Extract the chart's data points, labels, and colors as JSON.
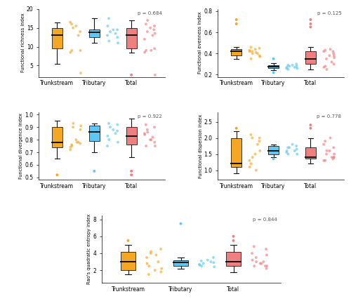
{
  "panels": [
    {
      "ylabel": "Functional richness index",
      "p_value": "p = 0.684",
      "ylim": [
        2,
        20
      ],
      "yticks": [
        5,
        10,
        15,
        20
      ],
      "groups": {
        "Trunkstream": {
          "color": "#F5A623",
          "scatter": [
            9.0,
            13.0,
            15.0,
            15.5,
            16.5,
            9.0,
            14.0,
            8.5,
            3.0,
            16.0
          ],
          "q1": 9.5,
          "median": 13.0,
          "q3": 15.0,
          "whislo": 5.5,
          "whishi": 16.5,
          "outliers": []
        },
        "Tributary": {
          "color": "#5BC8F5",
          "scatter": [
            11.5,
            13.5,
            14.0,
            14.5,
            13.0,
            12.5,
            14.5,
            15.5,
            11.0,
            17.5
          ],
          "q1": 12.5,
          "median": 13.75,
          "q3": 14.5,
          "whislo": 11.0,
          "whishi": 17.5,
          "outliers": []
        },
        "Total": {
          "color": "#F08080",
          "scatter": [
            9.0,
            13.0,
            14.0,
            15.0,
            12.0,
            9.5,
            15.5,
            8.5,
            2.5,
            16.0,
            17.0,
            9.0,
            13.5,
            14.5
          ],
          "q1": 9.5,
          "median": 13.0,
          "q3": 15.0,
          "whislo": 8.5,
          "whishi": 17.0,
          "outliers": [
            2.5
          ]
        }
      }
    },
    {
      "ylabel": "Functional evenness index",
      "p_value": "p = 0.125",
      "ylim": [
        0.18,
        0.82
      ],
      "yticks": [
        0.2,
        0.4,
        0.6,
        0.8
      ],
      "groups": {
        "Trunkstream": {
          "color": "#F5A623",
          "scatter": [
            0.35,
            0.4,
            0.42,
            0.44,
            0.43,
            0.38,
            0.45,
            0.42,
            0.37,
            0.46,
            0.4,
            0.41
          ],
          "q1": 0.38,
          "median": 0.42,
          "q3": 0.44,
          "whislo": 0.35,
          "whishi": 0.46,
          "outliers": [
            0.68,
            0.72
          ]
        },
        "Tributary": {
          "color": "#5BC8F5",
          "scatter": [
            0.25,
            0.27,
            0.28,
            0.29,
            0.26,
            0.28,
            0.3,
            0.27,
            0.26,
            0.29
          ],
          "q1": 0.26,
          "median": 0.275,
          "q3": 0.29,
          "whislo": 0.24,
          "whishi": 0.31,
          "outliers": [
            0.22,
            0.35
          ]
        },
        "Total": {
          "color": "#F08080",
          "scatter": [
            0.28,
            0.32,
            0.35,
            0.38,
            0.42,
            0.3,
            0.4,
            0.27,
            0.36,
            0.43,
            0.25,
            0.44,
            0.38,
            0.42
          ],
          "q1": 0.3,
          "median": 0.35,
          "q3": 0.42,
          "whislo": 0.25,
          "whishi": 0.46,
          "outliers": [
            0.65,
            0.68,
            0.72
          ]
        }
      }
    },
    {
      "ylabel": "Functional divergence index",
      "p_value": "p = 0.922",
      "ylim": [
        0.48,
        1.02
      ],
      "yticks": [
        0.5,
        0.6,
        0.7,
        0.8,
        0.9,
        1.0
      ],
      "groups": {
        "Trunkstream": {
          "color": "#F5A623",
          "scatter": [
            0.75,
            0.78,
            0.9,
            0.8,
            0.72,
            0.88,
            0.77,
            0.74,
            0.91,
            0.76,
            0.93,
            0.78
          ],
          "q1": 0.74,
          "median": 0.78,
          "q3": 0.9,
          "whislo": 0.65,
          "whishi": 0.95,
          "outliers": [
            0.52
          ]
        },
        "Tributary": {
          "color": "#5BC8F5",
          "scatter": [
            0.8,
            0.85,
            0.9,
            0.88,
            0.75,
            0.92,
            0.87,
            0.83,
            0.78,
            0.93
          ],
          "q1": 0.79,
          "median": 0.86,
          "q3": 0.91,
          "whislo": 0.7,
          "whishi": 0.93,
          "outliers": [
            0.55
          ]
        },
        "Total": {
          "color": "#F08080",
          "scatter": [
            0.75,
            0.82,
            0.88,
            0.8,
            0.85,
            0.78,
            0.9,
            0.84,
            0.75,
            0.92,
            0.86,
            0.8
          ],
          "q1": 0.76,
          "median": 0.83,
          "q3": 0.9,
          "whislo": 0.66,
          "whishi": 0.97,
          "outliers": [
            0.52,
            0.55
          ]
        }
      }
    },
    {
      "ylabel": "Functional dispersion index",
      "p_value": "p = 0.778",
      "ylim": [
        0.7,
        2.8
      ],
      "yticks": [
        1.0,
        1.5,
        2.0,
        2.5
      ],
      "groups": {
        "Trunkstream": {
          "color": "#F5A623",
          "scatter": [
            1.2,
            1.8,
            2.0,
            1.5,
            1.3,
            2.0,
            1.9,
            1.1,
            1.6,
            2.1,
            1.4,
            1.0
          ],
          "q1": 1.1,
          "median": 1.2,
          "q3": 2.0,
          "whislo": 0.9,
          "whishi": 2.2,
          "outliers": [
            2.3
          ]
        },
        "Tributary": {
          "color": "#5BC8F5",
          "scatter": [
            1.5,
            1.6,
            1.7,
            1.8,
            1.55,
            1.65,
            1.75,
            1.6,
            1.5,
            1.7
          ],
          "q1": 1.5,
          "median": 1.6,
          "q3": 1.75,
          "whislo": 1.4,
          "whishi": 1.8,
          "outliers": [
            1.35
          ]
        },
        "Total": {
          "color": "#F08080",
          "scatter": [
            1.3,
            1.4,
            1.5,
            1.6,
            1.8,
            1.4,
            1.7,
            1.3,
            1.5,
            1.9,
            1.6,
            2.0,
            1.4,
            1.35
          ],
          "q1": 1.35,
          "median": 1.4,
          "q3": 1.7,
          "whislo": 1.2,
          "whishi": 2.0,
          "outliers": [
            2.3,
            2.4
          ]
        }
      }
    },
    {
      "ylabel": "Rao's quadratic entropy index",
      "p_value": "p = 0.844",
      "ylim": [
        0.5,
        8.5
      ],
      "yticks": [
        2,
        4,
        6,
        8
      ],
      "groups": {
        "Trunkstream": {
          "color": "#F5A623",
          "scatter": [
            2.5,
            3.0,
            4.0,
            2.0,
            3.5,
            1.8,
            4.5,
            2.8,
            2.2,
            1.5,
            4.2,
            3.8
          ],
          "q1": 2.0,
          "median": 3.0,
          "q3": 4.2,
          "whislo": 1.5,
          "whishi": 5.0,
          "outliers": [
            5.5
          ]
        },
        "Tributary": {
          "color": "#5BC8F5",
          "scatter": [
            2.5,
            3.0,
            2.8,
            3.2,
            2.7,
            2.9,
            3.5,
            2.6,
            2.4,
            3.1
          ],
          "q1": 2.5,
          "median": 2.9,
          "q3": 3.2,
          "whislo": 2.2,
          "whishi": 3.5,
          "outliers": [
            7.5
          ]
        },
        "Total": {
          "color": "#F08080",
          "scatter": [
            2.5,
            3.0,
            3.5,
            2.8,
            4.0,
            2.2,
            4.5,
            3.2,
            2.5,
            4.8,
            3.0,
            2.8,
            3.8,
            2.5
          ],
          "q1": 2.5,
          "median": 3.0,
          "q3": 4.2,
          "whislo": 1.8,
          "whishi": 5.0,
          "outliers": [
            5.5,
            6.0
          ]
        }
      }
    }
  ],
  "group_names": [
    "Trunkstream",
    "Tributary",
    "Total"
  ],
  "group_colors": {
    "Trunkstream": "#F5A623",
    "Tributary": "#5BC8F5",
    "Total": "#F08080"
  }
}
